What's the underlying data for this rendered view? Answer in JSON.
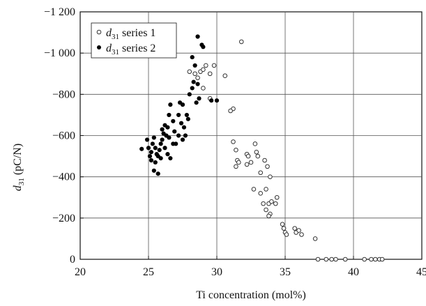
{
  "chart_data": {
    "type": "scatter",
    "title": "",
    "xlabel": "Ti concentration (mol%)",
    "ylabel": {
      "symbol": "d",
      "sub": "31",
      "unit": "(pC/N)"
    },
    "xlim": [
      20,
      45
    ],
    "ylim": [
      0,
      -1200
    ],
    "xticks": [
      20,
      25,
      30,
      35,
      40,
      45
    ],
    "xtick_labels": [
      "20",
      "25",
      "30",
      "35",
      "40",
      "45"
    ],
    "yticks": [
      0,
      -200,
      -400,
      -600,
      -800,
      -1000,
      -1200
    ],
    "ytick_labels": [
      "0",
      "−200",
      "−400",
      "−600",
      "−800",
      "−1 000",
      "−1 200"
    ],
    "grid": true,
    "legend_position": "top-left",
    "series": [
      {
        "name": "series 1",
        "legend_symbol": "d",
        "legend_sub": "31",
        "marker": "open-circle",
        "points": [
          [
            28.0,
            -910
          ],
          [
            28.4,
            -900
          ],
          [
            28.6,
            -880
          ],
          [
            28.8,
            -910
          ],
          [
            29.0,
            -920
          ],
          [
            29.2,
            -940
          ],
          [
            29.5,
            -900
          ],
          [
            29.8,
            -940
          ],
          [
            30.6,
            -890
          ],
          [
            29.0,
            -830
          ],
          [
            29.5,
            -780
          ],
          [
            31.2,
            -730
          ],
          [
            31.0,
            -720
          ],
          [
            31.8,
            -1055
          ],
          [
            31.2,
            -570
          ],
          [
            31.4,
            -530
          ],
          [
            31.5,
            -480
          ],
          [
            31.6,
            -470
          ],
          [
            31.4,
            -450
          ],
          [
            32.2,
            -510
          ],
          [
            32.3,
            -500
          ],
          [
            32.5,
            -470
          ],
          [
            32.2,
            -460
          ],
          [
            32.8,
            -560
          ],
          [
            32.9,
            -520
          ],
          [
            33.0,
            -500
          ],
          [
            33.5,
            -480
          ],
          [
            33.2,
            -420
          ],
          [
            33.7,
            -450
          ],
          [
            33.9,
            -400
          ],
          [
            32.7,
            -340
          ],
          [
            33.2,
            -320
          ],
          [
            33.6,
            -340
          ],
          [
            33.4,
            -270
          ],
          [
            33.8,
            -270
          ],
          [
            34.0,
            -280
          ],
          [
            34.4,
            -300
          ],
          [
            34.3,
            -270
          ],
          [
            33.6,
            -240
          ],
          [
            33.9,
            -220
          ],
          [
            33.8,
            -210
          ],
          [
            34.8,
            -170
          ],
          [
            34.9,
            -150
          ],
          [
            35.0,
            -130
          ],
          [
            35.1,
            -120
          ],
          [
            35.7,
            -150
          ],
          [
            35.8,
            -130
          ],
          [
            36.0,
            -140
          ],
          [
            36.2,
            -120
          ],
          [
            37.2,
            -100
          ],
          [
            37.4,
            0
          ],
          [
            38.0,
            0
          ],
          [
            38.4,
            0
          ],
          [
            38.7,
            0
          ],
          [
            39.4,
            0
          ],
          [
            40.8,
            0
          ],
          [
            41.3,
            0
          ],
          [
            41.6,
            0
          ],
          [
            41.9,
            0
          ],
          [
            42.1,
            0
          ]
        ]
      },
      {
        "name": "series 2",
        "legend_symbol": "d",
        "legend_sub": "31",
        "marker": "filled-circle",
        "points": [
          [
            24.5,
            -535
          ],
          [
            24.9,
            -580
          ],
          [
            25.0,
            -540
          ],
          [
            25.1,
            -500
          ],
          [
            25.2,
            -520
          ],
          [
            25.3,
            -560
          ],
          [
            25.4,
            -590
          ],
          [
            25.5,
            -540
          ],
          [
            25.6,
            -510
          ],
          [
            25.2,
            -480
          ],
          [
            25.5,
            -470
          ],
          [
            25.7,
            -500
          ],
          [
            25.8,
            -530
          ],
          [
            25.9,
            -560
          ],
          [
            26.0,
            -580
          ],
          [
            25.4,
            -430
          ],
          [
            25.7,
            -415
          ],
          [
            25.9,
            -490
          ],
          [
            26.1,
            -610
          ],
          [
            26.2,
            -650
          ],
          [
            26.0,
            -630
          ],
          [
            26.3,
            -600
          ],
          [
            26.4,
            -640
          ],
          [
            26.5,
            -590
          ],
          [
            26.2,
            -540
          ],
          [
            26.4,
            -510
          ],
          [
            26.6,
            -490
          ],
          [
            26.5,
            -700
          ],
          [
            26.6,
            -750
          ],
          [
            26.8,
            -670
          ],
          [
            26.9,
            -620
          ],
          [
            27.0,
            -560
          ],
          [
            27.2,
            -700
          ],
          [
            27.3,
            -760
          ],
          [
            27.5,
            -750
          ],
          [
            27.4,
            -660
          ],
          [
            27.6,
            -640
          ],
          [
            27.7,
            -600
          ],
          [
            27.5,
            -580
          ],
          [
            27.8,
            -700
          ],
          [
            27.9,
            -680
          ],
          [
            28.0,
            -800
          ],
          [
            28.2,
            -830
          ],
          [
            28.3,
            -860
          ],
          [
            28.6,
            -850
          ],
          [
            28.7,
            -780
          ],
          [
            28.5,
            -760
          ],
          [
            28.2,
            -980
          ],
          [
            28.4,
            -940
          ],
          [
            28.6,
            -1080
          ],
          [
            28.9,
            -1040
          ],
          [
            29.0,
            -1030
          ],
          [
            29.6,
            -770
          ],
          [
            30.0,
            -770
          ],
          [
            27.2,
            -600
          ],
          [
            26.8,
            -560
          ]
        ]
      }
    ]
  }
}
